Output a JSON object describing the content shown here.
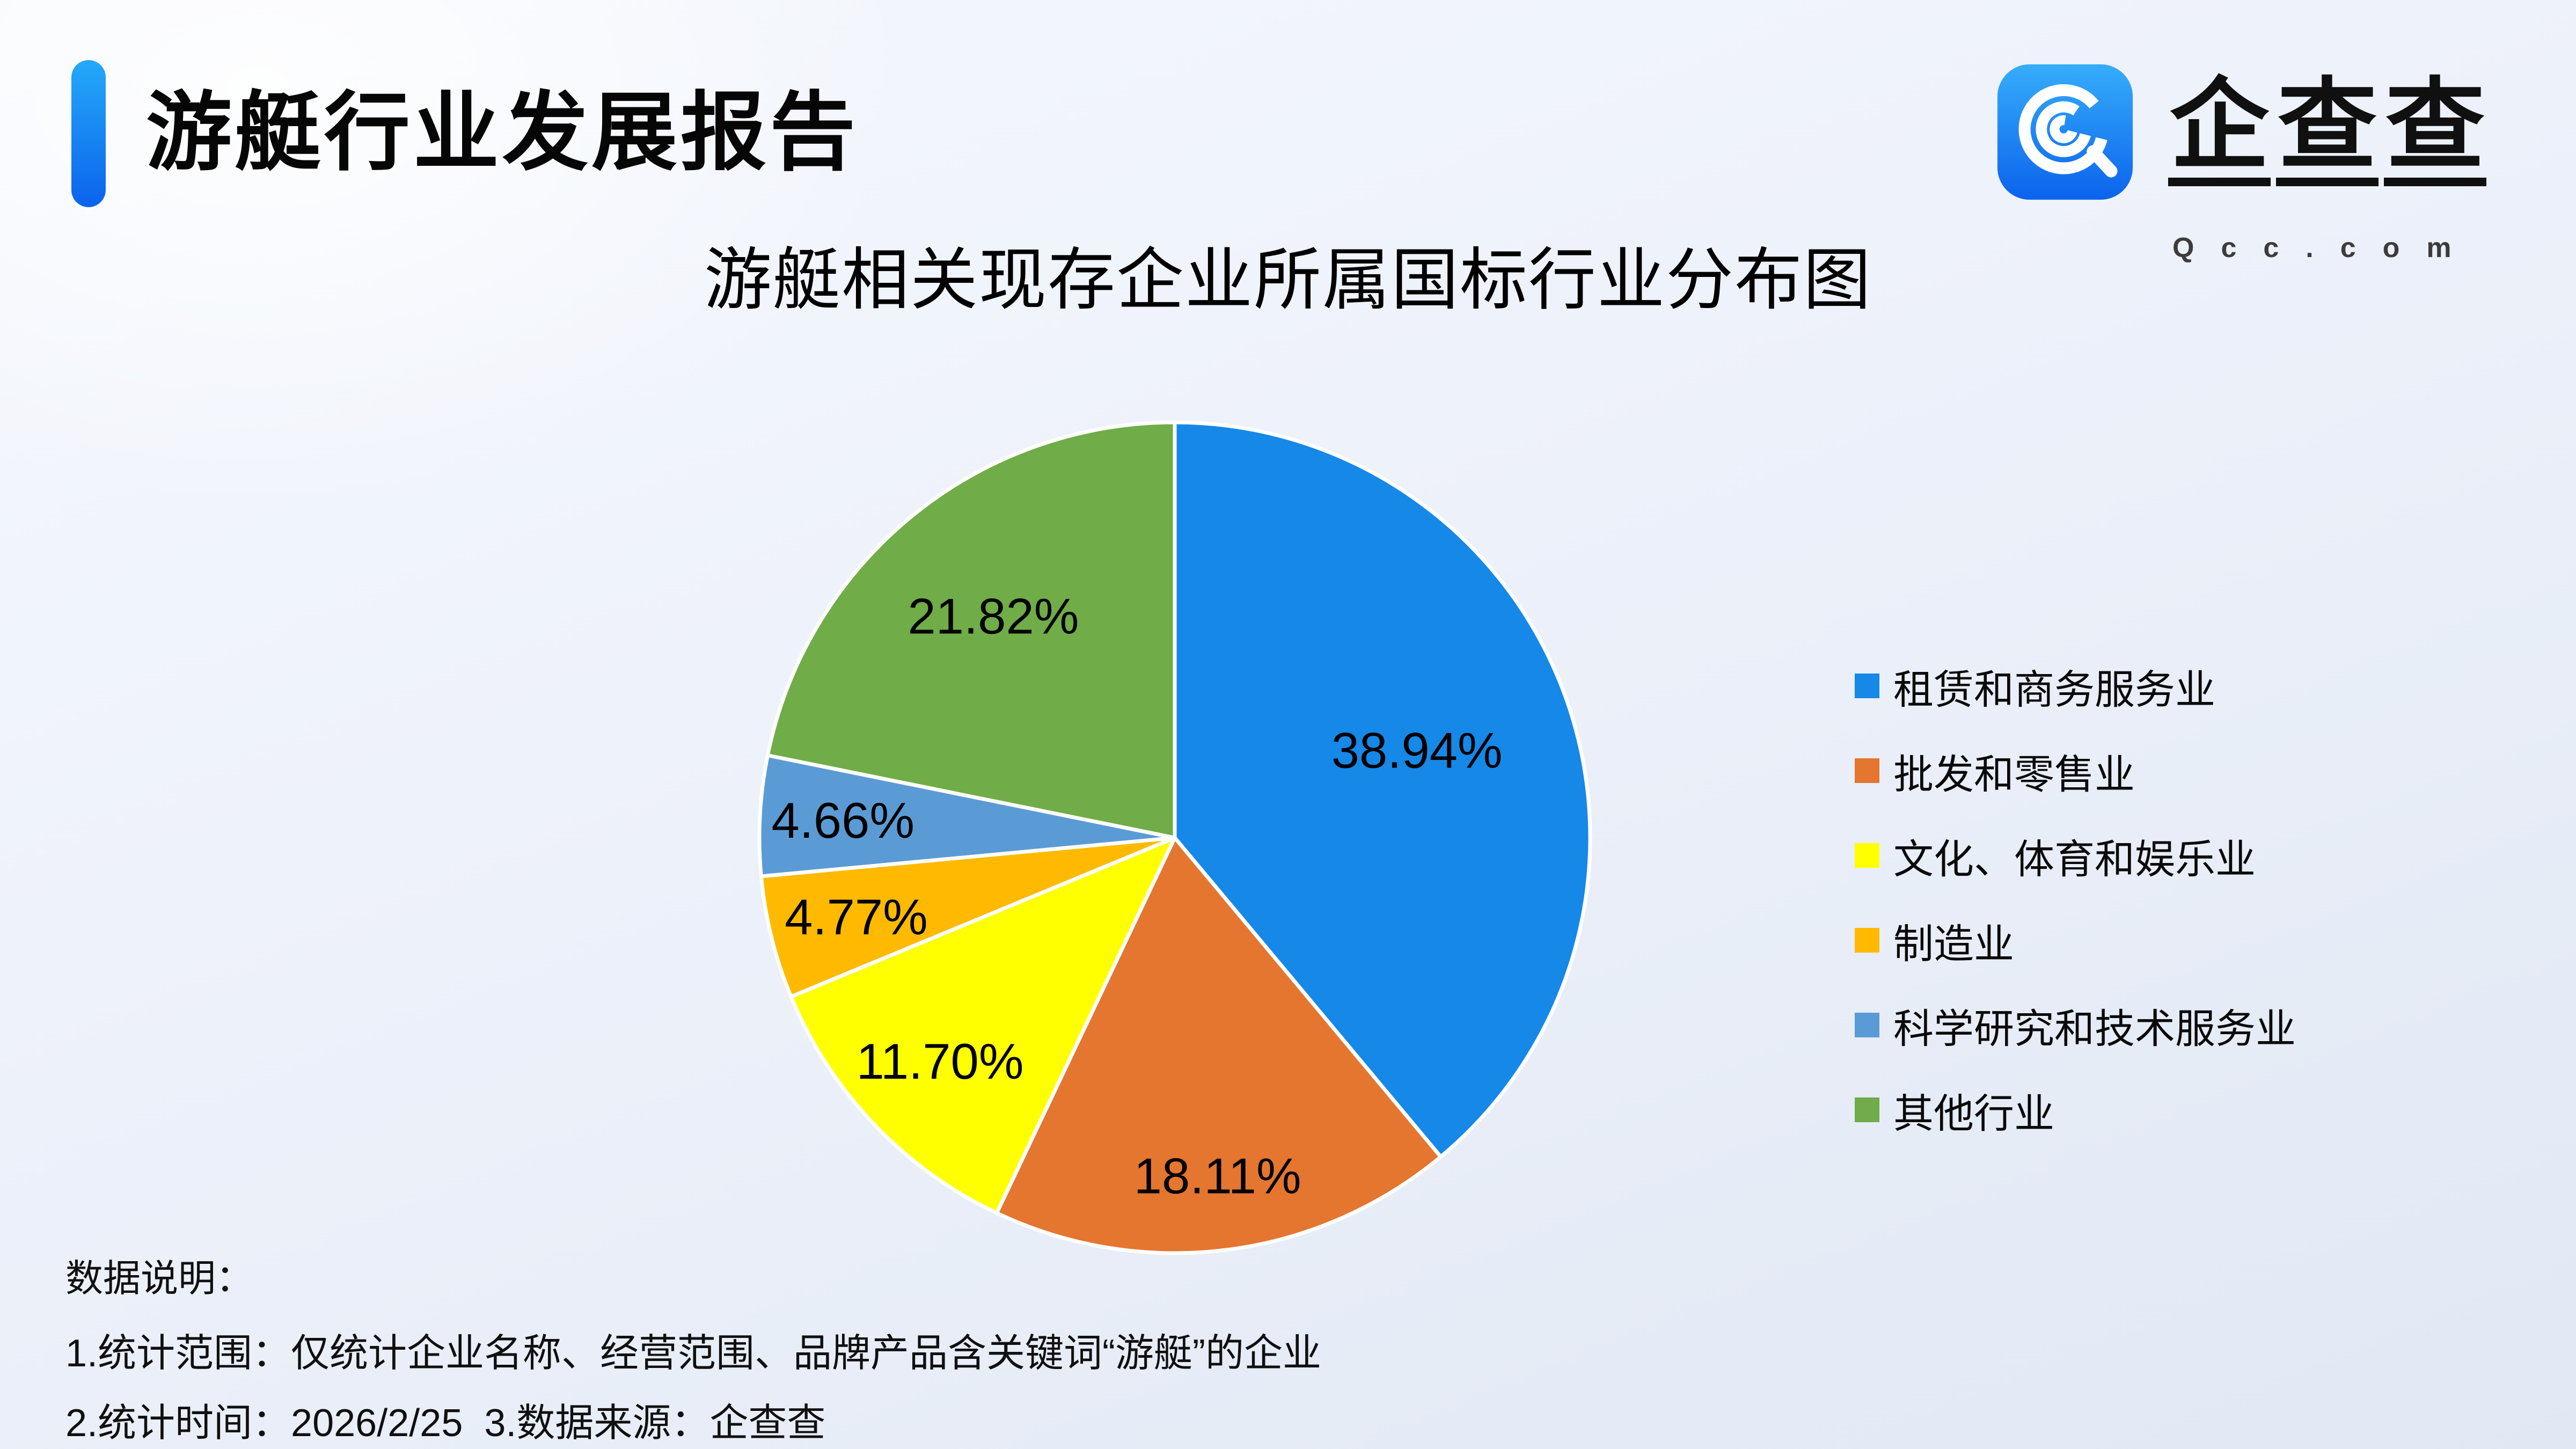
{
  "header": {
    "title": "游艇行业发展报告"
  },
  "logo": {
    "text": "企查查",
    "chars": [
      "企",
      "查",
      "查"
    ],
    "domain": "Qcc.com",
    "brand_color": "#1583F2"
  },
  "chart_data": {
    "type": "pie",
    "title": "游艇相关现存企业所属国标行业分布图",
    "categories": [
      "租赁和商务服务业",
      "批发和零售业",
      "文化、体育和娱乐业",
      "制造业",
      "科学研究和技术服务业",
      "其他行业"
    ],
    "values": [
      38.94,
      18.11,
      11.7,
      4.77,
      4.66,
      21.82
    ],
    "labels": [
      "38.94%",
      "18.11%",
      "11.70%",
      "4.77%",
      "4.66%",
      "21.82%"
    ],
    "colors": [
      "#1588E8",
      "#E4762F",
      "#FFFF00",
      "#FFBA00",
      "#5B9BD5",
      "#70AC47"
    ],
    "unit": "%",
    "start_angle_deg": 0,
    "direction": "clockwise",
    "label_radius": [
      0.62,
      0.82,
      0.78,
      0.79,
      0.8,
      0.69
    ],
    "label_color": "#000000",
    "slice_border_color": "#FFFFFF",
    "legend_position": "right"
  },
  "notes": {
    "heading": "数据说明：",
    "line1": "1.统计范围：仅统计企业名称、经营范围、品牌产品含关键词“游艇”的企业",
    "line2": "2.统计时间：2026/2/25  3.数据来源：企查查"
  }
}
